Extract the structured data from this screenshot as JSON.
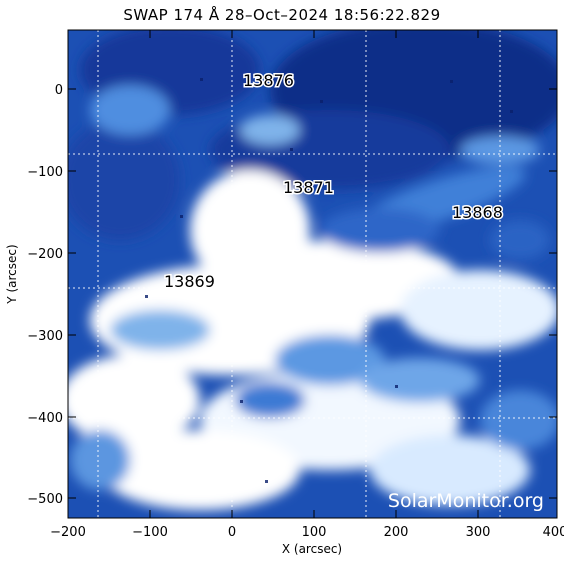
{
  "title": "SWAP 174 Å 28–Oct–2024 18:56:22.829",
  "x_axis": {
    "label": "X (arcsec)",
    "ticks": [
      "−200",
      "−100",
      "0",
      "100",
      "200",
      "300",
      "400"
    ]
  },
  "y_axis": {
    "label": "Y (arcsec)",
    "ticks": [
      "0",
      "−100",
      "−200",
      "−300",
      "−400",
      "−500"
    ]
  },
  "regions": [
    {
      "id": "13876",
      "label": "13876"
    },
    {
      "id": "13871",
      "label": "13871"
    },
    {
      "id": "13868",
      "label": "13868"
    },
    {
      "id": "13869",
      "label": "13869"
    }
  ],
  "watermark": "SolarMonitor.org",
  "colors": {
    "dark": "#0c2f86",
    "mid": "#2e6fd0",
    "light": "#8fc0ee",
    "bright": "#ffffff"
  }
}
